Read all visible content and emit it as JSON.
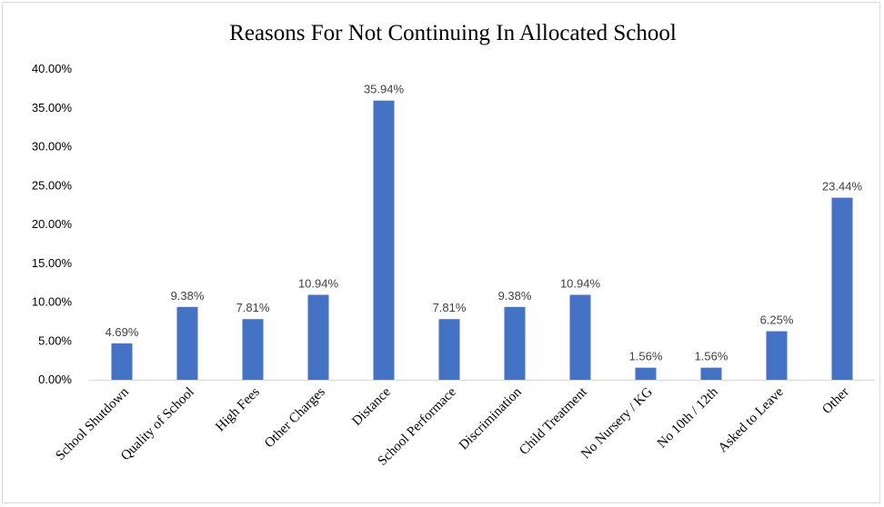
{
  "chart_data": {
    "type": "bar",
    "title": "Reasons For Not Continuing In Allocated School",
    "xlabel": "",
    "ylabel": "",
    "categories": [
      "School Shutdown",
      "Quality of School",
      "High Fees",
      "Other Charges",
      "Distance",
      "School Performace",
      "Discrimination",
      "Child Treatment",
      "No Nursery / KG",
      "No 10th / 12th",
      "Asked to Leave",
      "Other"
    ],
    "values": [
      4.69,
      9.38,
      7.81,
      10.94,
      35.94,
      7.81,
      9.38,
      10.94,
      1.56,
      1.56,
      6.25,
      23.44
    ],
    "data_labels": [
      "4.69%",
      "9.38%",
      "7.81%",
      "10.94%",
      "35.94%",
      "7.81%",
      "9.38%",
      "10.94%",
      "1.56%",
      "1.56%",
      "6.25%",
      "23.44%"
    ],
    "yticks": [
      0,
      5,
      10,
      15,
      20,
      25,
      30,
      35,
      40
    ],
    "ytick_labels": [
      "0.00%",
      "5.00%",
      "10.00%",
      "15.00%",
      "20.00%",
      "25.00%",
      "30.00%",
      "35.00%",
      "40.00%"
    ],
    "ylim": [
      0,
      40
    ],
    "grid": false,
    "legend": "none",
    "bar_color": "#4472c4"
  }
}
